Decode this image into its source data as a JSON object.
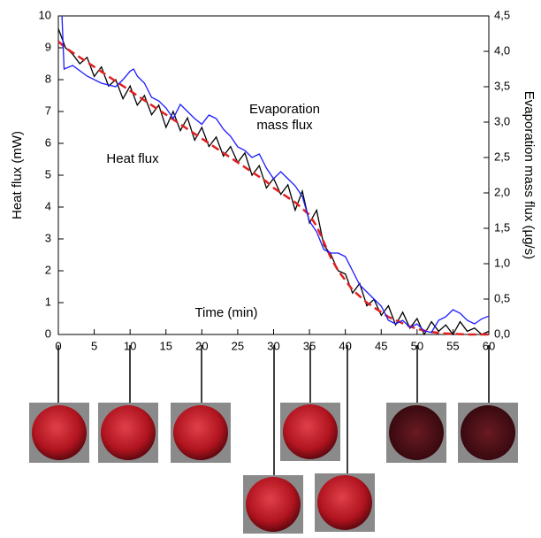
{
  "chart_data": {
    "type": "line",
    "xlabel": "Time (min)",
    "ylabel": "Heat flux (mW)",
    "y2label": "Evaporation mass flux (µg/s)",
    "annotations": [
      "Evaporation",
      "mass flux",
      "Heat flux"
    ],
    "xlim": [
      0,
      60
    ],
    "xticks": [
      0,
      5,
      10,
      15,
      20,
      25,
      30,
      35,
      40,
      45,
      50,
      55,
      60
    ],
    "ylim": [
      0,
      10
    ],
    "yticks": [
      0,
      1,
      2,
      3,
      4,
      5,
      6,
      7,
      8,
      9,
      10
    ],
    "y2lim": [
      0,
      4.5
    ],
    "y2ticks": [
      {
        "value": 0,
        "label": "0,0"
      },
      {
        "value": 0.5,
        "label": "0,5"
      },
      {
        "value": 1,
        "label": "1,0"
      },
      {
        "value": 1.5,
        "label": "1,5"
      },
      {
        "value": 2,
        "label": "2,0"
      },
      {
        "value": 2.5,
        "label": "2,5"
      },
      {
        "value": 3,
        "label": "3,0"
      },
      {
        "value": 3.5,
        "label": "3,5"
      },
      {
        "value": 4,
        "label": "4,0"
      },
      {
        "value": 4.5,
        "label": "4,5"
      }
    ],
    "series": [
      {
        "color": "#000000",
        "dash": false,
        "x": [
          0,
          1,
          2,
          3,
          4,
          5,
          6,
          7,
          8,
          9,
          10,
          11,
          12,
          13,
          14,
          15,
          16,
          17,
          18,
          19,
          20,
          21,
          22,
          23,
          24,
          25,
          26,
          27,
          28,
          29,
          30,
          31,
          32,
          33,
          34,
          35,
          36,
          37,
          38,
          39,
          40,
          41,
          42,
          43,
          44,
          45,
          46,
          47,
          48,
          49,
          50,
          51,
          52,
          53,
          54,
          55,
          56,
          57,
          58,
          59,
          60
        ],
        "values": [
          9.6,
          9.0,
          8.8,
          8.5,
          8.7,
          8.1,
          8.4,
          7.8,
          8.0,
          7.4,
          7.8,
          7.2,
          7.5,
          6.9,
          7.2,
          6.5,
          7.0,
          6.4,
          6.8,
          6.1,
          6.5,
          5.9,
          6.2,
          5.6,
          5.9,
          5.4,
          5.7,
          5.0,
          5.3,
          4.6,
          4.9,
          4.4,
          4.7,
          3.9,
          4.5,
          3.5,
          3.9,
          2.8,
          2.5,
          2.0,
          1.9,
          1.3,
          1.6,
          0.9,
          1.1,
          0.6,
          0.9,
          0.3,
          0.7,
          0.2,
          0.5,
          0.0,
          0.4,
          0.1,
          0.3,
          0.0,
          0.4,
          0.1,
          0.2,
          0.0,
          0.1
        ]
      },
      {
        "color": "#e02020",
        "dash": true,
        "x": [
          0,
          1,
          2,
          3,
          4,
          5,
          6,
          7,
          8,
          9,
          10,
          11,
          12,
          13,
          14,
          15,
          16,
          17,
          18,
          19,
          20,
          21,
          22,
          23,
          24,
          25,
          26,
          27,
          28,
          29,
          30,
          31,
          32,
          33,
          34,
          35,
          36,
          37,
          38,
          39,
          40,
          41,
          42,
          43,
          44,
          45,
          46,
          47,
          48,
          49,
          50,
          51,
          52,
          53,
          54,
          55,
          56,
          57,
          58,
          59,
          60
        ],
        "values": [
          9.2,
          9.0,
          8.85,
          8.7,
          8.55,
          8.4,
          8.25,
          8.1,
          7.95,
          7.8,
          7.65,
          7.5,
          7.35,
          7.2,
          7.05,
          6.9,
          6.75,
          6.6,
          6.45,
          6.3,
          6.15,
          6.0,
          5.85,
          5.7,
          5.55,
          5.4,
          5.25,
          5.1,
          4.95,
          4.8,
          4.6,
          4.45,
          4.3,
          4.15,
          3.95,
          3.75,
          3.4,
          2.9,
          2.4,
          2.0,
          1.7,
          1.4,
          1.2,
          1.0,
          0.85,
          0.7,
          0.55,
          0.45,
          0.35,
          0.25,
          0.18,
          0.12,
          0.08,
          0.05,
          0.03,
          0.02,
          0.01,
          0,
          0,
          0,
          0
        ]
      },
      {
        "color": "#1a1aff",
        "dash": false,
        "axis": "y2",
        "x": [
          0.5,
          0.8,
          2,
          4,
          6,
          8,
          9,
          10,
          10.5,
          11,
          12,
          13,
          14,
          15,
          16,
          17,
          18,
          19,
          20,
          21,
          22,
          23,
          24,
          25,
          26,
          27,
          28,
          29,
          30,
          31,
          32,
          33,
          34,
          35,
          36,
          37,
          38,
          39,
          40,
          41,
          42,
          43,
          44,
          45,
          46,
          47,
          48,
          49,
          50,
          51,
          52,
          53,
          54,
          55,
          56,
          57,
          58,
          59,
          60
        ],
        "values": [
          4.5,
          3.75,
          3.8,
          3.65,
          3.55,
          3.5,
          3.6,
          3.72,
          3.75,
          3.65,
          3.55,
          3.35,
          3.3,
          3.2,
          3.05,
          3.25,
          3.15,
          3.05,
          2.97,
          3.1,
          3.05,
          2.9,
          2.8,
          2.65,
          2.6,
          2.5,
          2.55,
          2.35,
          2.2,
          2.3,
          2.2,
          2.1,
          1.95,
          1.6,
          1.45,
          1.2,
          1.15,
          1.15,
          1.1,
          0.9,
          0.7,
          0.6,
          0.5,
          0.4,
          0.2,
          0.15,
          0.2,
          0.1,
          0.15,
          0.05,
          0.03,
          0.2,
          0.25,
          0.35,
          0.3,
          0.2,
          0.15,
          0.22,
          0.26
        ]
      }
    ]
  }
}
